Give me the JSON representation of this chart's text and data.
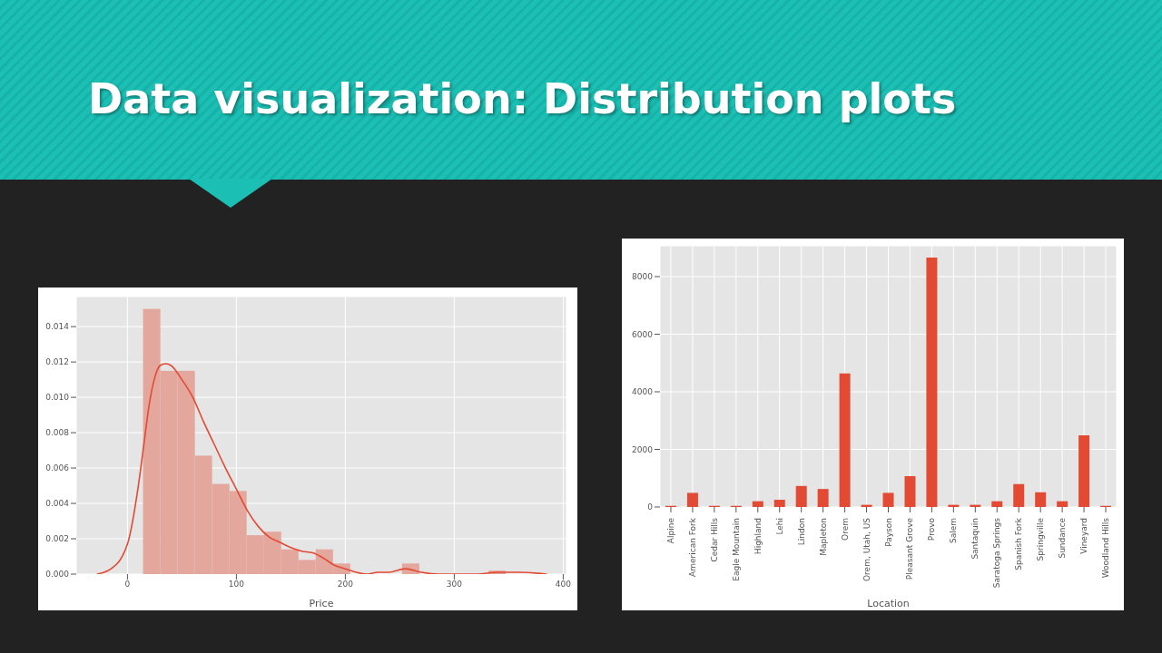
{
  "chart_data": [
    {
      "type": "histogram",
      "title": "Data visualization: Distribution plots",
      "xlabel": "Price",
      "bins": [
        14.3,
        30.2,
        46.0,
        61.9,
        77.7,
        93.6,
        109.4,
        125.3,
        141.1,
        157.0,
        172.8,
        188.7,
        204.5,
        220.4,
        236.2,
        252.1,
        267.9,
        283.8,
        299.6,
        315.5,
        331.3,
        347.2
      ],
      "values": [
        0.015,
        0.0115,
        0.0115,
        0.0067,
        0.0051,
        0.0047,
        0.0022,
        0.0024,
        0.0014,
        0.0008,
        0.0014,
        0.0006,
        0,
        0,
        0,
        0.0006,
        0,
        0,
        0,
        0,
        0.0002
      ],
      "color": "#e4a79e",
      "series": [
        {
          "type": "line",
          "color": "#e24a33",
          "x": [
            -28,
            -15,
            0,
            10,
            15,
            20,
            25,
            30,
            35,
            40,
            50,
            60,
            70,
            80,
            90,
            100,
            110,
            120,
            130,
            140,
            150,
            160,
            170,
            180,
            190,
            200,
            210,
            220,
            230,
            240,
            255,
            270,
            285,
            300,
            320,
            340,
            360,
            385
          ],
          "values": [
            0.0,
            0.0003,
            0.0017,
            0.005,
            0.0073,
            0.0096,
            0.0111,
            0.0118,
            0.0119,
            0.0118,
            0.011,
            0.01,
            0.0086,
            0.0073,
            0.006,
            0.0048,
            0.0036,
            0.0027,
            0.0021,
            0.0018,
            0.0015,
            0.0013,
            0.0012,
            0.0009,
            0.0005,
            0.0003,
            0.0001,
            0.0,
            0.0001,
            0.0001,
            0.0003,
            0.0001,
            0.0,
            0.0,
            0.0,
            0.0001,
            0.0001,
            0.0
          ]
        }
      ],
      "xlim": [
        -47,
        403
      ],
      "xticks": [
        0,
        100,
        200,
        300,
        400
      ],
      "ylim": [
        0,
        0.0157
      ],
      "yticks": [
        {
          "value": 0,
          "label": "0.000"
        },
        {
          "value": 0.002,
          "label": "0.002"
        },
        {
          "value": 0.004,
          "label": "0.004"
        },
        {
          "value": 0.006,
          "label": "0.006"
        },
        {
          "value": 0.008,
          "label": "0.008"
        },
        {
          "value": 0.01,
          "label": "0.010"
        },
        {
          "value": 0.012,
          "label": "0.012"
        },
        {
          "value": 0.014,
          "label": "0.014"
        }
      ],
      "grid": true
    },
    {
      "type": "bar",
      "xlabel": "Location",
      "categories": [
        "Alpine",
        "American Fork",
        "Cedar Hills",
        "Eagle Mountain",
        "Highland",
        "Lehi",
        "Lindon",
        "Mapleton",
        "Orem",
        "Orem, Utah, US",
        "Payson",
        "Pleasant Grove",
        "Provo",
        "Salem",
        "Santaquin",
        "Saratoga Springs",
        "Spanish Fork",
        "Springville",
        "Sundance",
        "Vineyard",
        "Woodland Hills"
      ],
      "values": [
        40,
        490,
        40,
        40,
        200,
        250,
        730,
        625,
        4640,
        75,
        490,
        1070,
        8660,
        75,
        75,
        200,
        795,
        510,
        200,
        2490,
        40
      ],
      "color": "#e24a33",
      "ylim": [
        0,
        9070
      ],
      "yticks": [
        0,
        2000,
        4000,
        6000,
        8000
      ],
      "grid": true
    }
  ]
}
